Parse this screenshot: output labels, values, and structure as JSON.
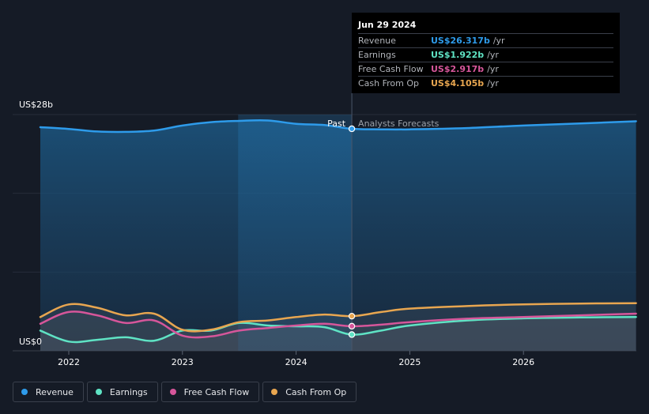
{
  "chart_data": {
    "type": "area",
    "y_axis_labels": {
      "top": "US$28b",
      "bottom": "US$0"
    },
    "ylim": [
      0,
      28
    ],
    "x_tick_labels": [
      "2022",
      "2023",
      "2024",
      "2025",
      "2026"
    ],
    "region_labels": {
      "past": "Past",
      "forecast": "Analysts Forecasts"
    },
    "divider_date": 2024.49,
    "highlight_start": 2023.49,
    "series": [
      {
        "name": "Revenue",
        "color": "#2e9bea",
        "x": [
          2021.75,
          2022.0,
          2022.25,
          2022.5,
          2022.75,
          2023.0,
          2023.25,
          2023.5,
          2023.75,
          2024.0,
          2024.25,
          2024.49,
          2024.75,
          2025.0,
          2025.5,
          2026.0,
          2026.5,
          2026.99
        ],
        "values": [
          26.5,
          26.3,
          26.0,
          25.95,
          26.1,
          26.7,
          27.1,
          27.25,
          27.3,
          26.9,
          26.75,
          26.317,
          26.25,
          26.25,
          26.4,
          26.7,
          26.95,
          27.2
        ]
      },
      {
        "name": "Earnings",
        "color": "#5fe3c4",
        "x": [
          2021.75,
          2022.0,
          2022.25,
          2022.5,
          2022.75,
          2023.0,
          2023.25,
          2023.5,
          2023.75,
          2024.0,
          2024.25,
          2024.49,
          2024.75,
          2025.0,
          2025.5,
          2026.0,
          2026.5,
          2026.99
        ],
        "values": [
          2.4,
          1.1,
          1.3,
          1.6,
          1.2,
          2.4,
          2.4,
          3.3,
          3.0,
          2.9,
          2.8,
          1.922,
          2.4,
          3.0,
          3.6,
          3.85,
          3.95,
          4.0
        ]
      },
      {
        "name": "Free Cash Flow",
        "color": "#d6569a",
        "x": [
          2021.75,
          2022.0,
          2022.25,
          2022.5,
          2022.75,
          2023.0,
          2023.25,
          2023.5,
          2023.75,
          2024.0,
          2024.25,
          2024.49,
          2024.75,
          2025.0,
          2025.5,
          2026.0,
          2026.5,
          2026.99
        ],
        "values": [
          3.2,
          4.6,
          4.2,
          3.3,
          3.6,
          1.8,
          1.7,
          2.4,
          2.7,
          3.0,
          3.2,
          2.917,
          3.1,
          3.4,
          3.8,
          4.0,
          4.2,
          4.4
        ]
      },
      {
        "name": "Cash From Op",
        "color": "#e8a650",
        "x": [
          2021.75,
          2022.0,
          2022.25,
          2022.5,
          2022.75,
          2023.0,
          2023.25,
          2023.5,
          2023.75,
          2024.0,
          2024.25,
          2024.49,
          2024.75,
          2025.0,
          2025.5,
          2026.0,
          2026.5,
          2026.99
        ],
        "values": [
          4.0,
          5.5,
          5.1,
          4.2,
          4.4,
          2.5,
          2.5,
          3.4,
          3.6,
          4.0,
          4.3,
          4.105,
          4.6,
          5.0,
          5.3,
          5.5,
          5.6,
          5.65
        ]
      }
    ]
  },
  "tooltip": {
    "date": "Jun 29 2024",
    "unit": "/yr",
    "rows": [
      {
        "label": "Revenue",
        "value": "US$26.317b",
        "color": "#2e9bea"
      },
      {
        "label": "Earnings",
        "value": "US$1.922b",
        "color": "#5fe3c4"
      },
      {
        "label": "Free Cash Flow",
        "value": "US$2.917b",
        "color": "#d6569a"
      },
      {
        "label": "Cash From Op",
        "value": "US$4.105b",
        "color": "#e8a650"
      }
    ]
  },
  "legend": [
    {
      "label": "Revenue",
      "color": "#2e9bea"
    },
    {
      "label": "Earnings",
      "color": "#5fe3c4"
    },
    {
      "label": "Free Cash Flow",
      "color": "#d6569a"
    },
    {
      "label": "Cash From Op",
      "color": "#e8a650"
    }
  ]
}
